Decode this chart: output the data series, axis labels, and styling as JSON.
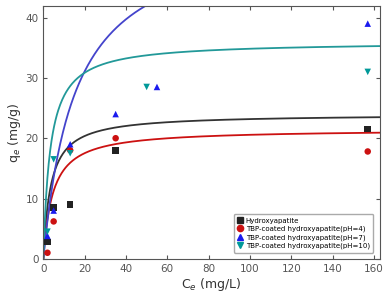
{
  "title": "",
  "xlabel": "C$_e$ (mg/L)",
  "ylabel": "q$_e$ (mg/g)",
  "xlim": [
    0,
    163
  ],
  "ylim": [
    0,
    42
  ],
  "xticks": [
    0,
    20,
    40,
    60,
    80,
    100,
    120,
    140,
    160
  ],
  "yticks": [
    0,
    10,
    20,
    30,
    40
  ],
  "series": [
    {
      "label": "Hydroxyapatite",
      "color": "#333333",
      "marker": "s",
      "marker_color": "#222222",
      "points_x": [
        2,
        5,
        13,
        35,
        157
      ],
      "points_y": [
        2.8,
        8.5,
        9.0,
        18.0,
        21.5
      ],
      "langmuir_qmax": 24.0,
      "langmuir_KL": 0.28
    },
    {
      "label": "TBP-coated hydroxyapatite(pH=4)",
      "color": "#cc1111",
      "marker": "o",
      "marker_color": "#cc1111",
      "points_x": [
        2,
        5,
        13,
        35,
        157
      ],
      "points_y": [
        1.0,
        6.2,
        18.0,
        20.0,
        17.8
      ],
      "langmuir_qmax": 21.5,
      "langmuir_KL": 0.22
    },
    {
      "label": "TBP-coated hydroxyapatite(pH=7)",
      "color": "#4444cc",
      "marker": "^",
      "marker_color": "#1a1aee",
      "points_x": [
        2,
        5,
        13,
        35,
        55,
        157
      ],
      "points_y": [
        3.8,
        8.0,
        19.0,
        24.0,
        28.5,
        39.0
      ],
      "langmuir_qmax": 55.0,
      "langmuir_KL": 0.065
    },
    {
      "label": "TBP-coated hydroxyapatite(pH=10)",
      "color": "#229999",
      "marker": "v",
      "marker_color": "#009999",
      "points_x": [
        2,
        5,
        13,
        50,
        157
      ],
      "points_y": [
        4.5,
        16.5,
        17.5,
        28.5,
        31.0
      ],
      "langmuir_qmax": 36.0,
      "langmuir_KL": 0.3
    }
  ],
  "background_color": "#ffffff",
  "grid": false
}
